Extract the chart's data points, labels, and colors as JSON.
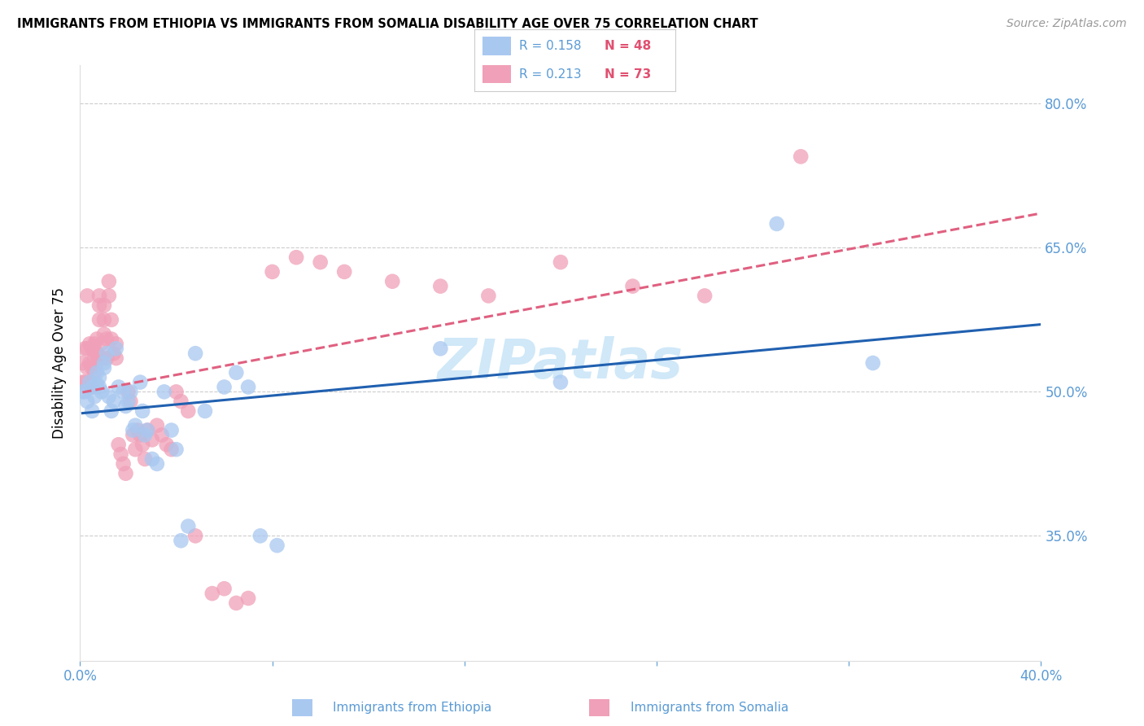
{
  "title": "IMMIGRANTS FROM ETHIOPIA VS IMMIGRANTS FROM SOMALIA DISABILITY AGE OVER 75 CORRELATION CHART",
  "source": "Source: ZipAtlas.com",
  "ylabel": "Disability Age Over 75",
  "xlim": [
    0.0,
    0.4
  ],
  "ylim": [
    0.22,
    0.84
  ],
  "yticks_right": [
    0.35,
    0.5,
    0.65,
    0.8
  ],
  "ytick_right_labels": [
    "35.0%",
    "50.0%",
    "65.0%",
    "80.0%"
  ],
  "xticks": [
    0.0,
    0.08,
    0.16,
    0.24,
    0.32,
    0.4
  ],
  "xtick_labels": [
    "0.0%",
    "",
    "",
    "",
    "",
    "40.0%"
  ],
  "grid_color": "#cccccc",
  "background_color": "#ffffff",
  "ethiopia": {
    "label": "Immigrants from Ethiopia",
    "R": 0.158,
    "N": 48,
    "color": "#a8c8f0",
    "line_color": "#2060b0",
    "x": [
      0.001,
      0.002,
      0.003,
      0.004,
      0.005,
      0.005,
      0.006,
      0.007,
      0.007,
      0.008,
      0.008,
      0.009,
      0.01,
      0.01,
      0.011,
      0.012,
      0.013,
      0.014,
      0.015,
      0.016,
      0.018,
      0.019,
      0.02,
      0.021,
      0.022,
      0.023,
      0.025,
      0.026,
      0.027,
      0.028,
      0.03,
      0.032,
      0.035,
      0.038,
      0.04,
      0.042,
      0.045,
      0.048,
      0.052,
      0.06,
      0.065,
      0.07,
      0.075,
      0.082,
      0.15,
      0.2,
      0.29,
      0.33
    ],
    "y": [
      0.5,
      0.5,
      0.49,
      0.51,
      0.505,
      0.48,
      0.495,
      0.52,
      0.508,
      0.515,
      0.505,
      0.5,
      0.53,
      0.525,
      0.54,
      0.495,
      0.48,
      0.49,
      0.545,
      0.505,
      0.5,
      0.485,
      0.49,
      0.5,
      0.46,
      0.465,
      0.51,
      0.48,
      0.455,
      0.46,
      0.43,
      0.425,
      0.5,
      0.46,
      0.44,
      0.345,
      0.36,
      0.54,
      0.48,
      0.505,
      0.52,
      0.505,
      0.35,
      0.34,
      0.545,
      0.51,
      0.675,
      0.53
    ]
  },
  "somalia": {
    "label": "Immigrants from Somalia",
    "R": 0.213,
    "N": 73,
    "color": "#f0a0b8",
    "line_color": "#e06080",
    "x": [
      0.001,
      0.001,
      0.002,
      0.002,
      0.003,
      0.003,
      0.003,
      0.004,
      0.004,
      0.004,
      0.005,
      0.005,
      0.005,
      0.006,
      0.006,
      0.006,
      0.007,
      0.007,
      0.007,
      0.008,
      0.008,
      0.008,
      0.009,
      0.009,
      0.01,
      0.01,
      0.01,
      0.011,
      0.011,
      0.012,
      0.012,
      0.013,
      0.013,
      0.014,
      0.015,
      0.015,
      0.016,
      0.017,
      0.018,
      0.019,
      0.02,
      0.021,
      0.022,
      0.023,
      0.024,
      0.025,
      0.026,
      0.027,
      0.028,
      0.03,
      0.032,
      0.034,
      0.036,
      0.038,
      0.04,
      0.042,
      0.045,
      0.048,
      0.055,
      0.06,
      0.065,
      0.07,
      0.08,
      0.09,
      0.1,
      0.11,
      0.13,
      0.15,
      0.17,
      0.2,
      0.23,
      0.26,
      0.3
    ],
    "y": [
      0.53,
      0.51,
      0.545,
      0.51,
      0.545,
      0.525,
      0.6,
      0.55,
      0.53,
      0.51,
      0.545,
      0.525,
      0.505,
      0.55,
      0.535,
      0.52,
      0.555,
      0.54,
      0.53,
      0.6,
      0.59,
      0.575,
      0.55,
      0.535,
      0.59,
      0.575,
      0.56,
      0.555,
      0.535,
      0.615,
      0.6,
      0.575,
      0.555,
      0.54,
      0.55,
      0.535,
      0.445,
      0.435,
      0.425,
      0.415,
      0.5,
      0.49,
      0.455,
      0.44,
      0.46,
      0.455,
      0.445,
      0.43,
      0.46,
      0.45,
      0.465,
      0.455,
      0.445,
      0.44,
      0.5,
      0.49,
      0.48,
      0.35,
      0.29,
      0.295,
      0.28,
      0.285,
      0.625,
      0.64,
      0.635,
      0.625,
      0.615,
      0.61,
      0.6,
      0.635,
      0.61,
      0.6,
      0.745
    ]
  },
  "legend_box_color": "#ffffff",
  "legend_border_color": "#cccccc",
  "axis_color": "#5b9bd5",
  "watermark": "ZIPatlas",
  "watermark_color": "#d0e8f8",
  "watermark_fontsize": 48,
  "legend_R_color": "#5b9bd5",
  "legend_N_color": "#e05070"
}
